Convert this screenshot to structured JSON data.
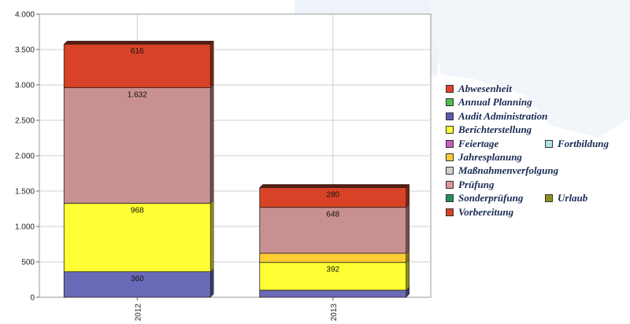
{
  "chart_data": {
    "type": "bar",
    "stacked": true,
    "categories": [
      "2012",
      "2013"
    ],
    "ylim": [
      0,
      4000
    ],
    "yticks": [
      0,
      500,
      1000,
      1500,
      2000,
      2500,
      3000,
      3500,
      4000
    ],
    "ytick_labels": [
      "0",
      "500",
      "1.000",
      "1.500",
      "2.000",
      "2.500",
      "3.000",
      "3.500",
      "4.000"
    ],
    "grid": true,
    "legend_position": "right",
    "title": "",
    "xlabel": "",
    "ylabel": "",
    "series": [
      {
        "name": "Audit Administration",
        "color": "#6a6ab8",
        "values": [
          360,
          100
        ],
        "labels": [
          "360",
          ""
        ]
      },
      {
        "name": "Berichterstellung",
        "color": "#ffff33",
        "values": [
          968,
          392
        ],
        "labels": [
          "968",
          "392"
        ]
      },
      {
        "name": "Jahresplanung",
        "color": "#ffcc33",
        "values": [
          0,
          130
        ],
        "labels": [
          "",
          ""
        ]
      },
      {
        "name": "Prüfung",
        "color": "#c89090",
        "values": [
          1632,
          648
        ],
        "labels": [
          "1.632",
          "648"
        ]
      },
      {
        "name": "Vorbereitung",
        "color": "#d84226",
        "values": [
          616,
          280
        ],
        "labels": [
          "616",
          "280"
        ]
      }
    ],
    "legend": [
      {
        "label": "Abwesenheit",
        "color": "#e53e2e"
      },
      {
        "label": "Annual Planning",
        "color": "#4cc04c"
      },
      {
        "label": "Audit Administration",
        "color": "#5a5ab0"
      },
      {
        "label": "Berichterstellung",
        "color": "#ffff33"
      },
      {
        "label": "Feiertage",
        "color": "#c060c0"
      },
      {
        "label": "Fortbildung",
        "color": "#b0e0ee"
      },
      {
        "label": "Jahresplanung",
        "color": "#ffcc33"
      },
      {
        "label": "Maßnahmenverfolgung",
        "color": "#d0d0d0"
      },
      {
        "label": "Prüfung",
        "color": "#d89898"
      },
      {
        "label": "Sonderprüfung",
        "color": "#209060"
      },
      {
        "label": "Urlaub",
        "color": "#909020"
      },
      {
        "label": "Vorbereitung",
        "color": "#d84226"
      }
    ]
  }
}
